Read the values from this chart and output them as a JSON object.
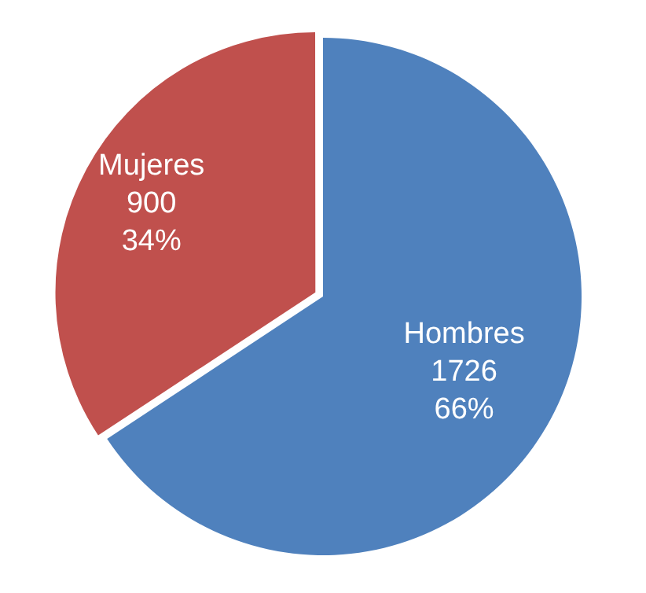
{
  "chart_data": {
    "type": "pie",
    "categories": [
      "Hombres",
      "Mujeres"
    ],
    "values": [
      1726,
      900
    ],
    "colors": [
      "#4f81bd",
      "#c0504d"
    ],
    "value_labels": [
      "1726\n66%",
      "900\n34%"
    ],
    "legend": false
  }
}
